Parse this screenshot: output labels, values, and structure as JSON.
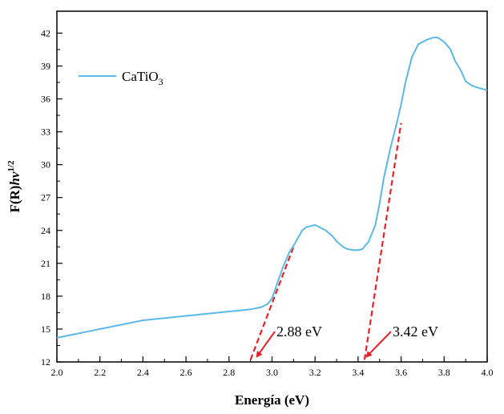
{
  "chart_data": {
    "type": "line",
    "xlabel": "Energía (eV)",
    "ylabel": "F(R)hv",
    "ylabel_italic_part": "hv",
    "ylabel_sup": "1/2",
    "xlim": [
      2.0,
      4.0
    ],
    "ylim": [
      12,
      44
    ],
    "xticks": [
      "2.0",
      "2.2",
      "2.4",
      "2.6",
      "2.8",
      "3.0",
      "3.2",
      "3.4",
      "3.6",
      "3.8",
      "4.0"
    ],
    "yticks": [
      "12",
      "15",
      "18",
      "21",
      "24",
      "27",
      "30",
      "33",
      "36",
      "39",
      "42"
    ],
    "grid": false,
    "legend_position": "top-left",
    "legend": {
      "label": "CaTiO",
      "subscript": "3"
    },
    "line_color": "#5bb8e8",
    "tangent_color": "#e8202a",
    "series": [
      {
        "name": "CaTiO3",
        "x": [
          2.0,
          2.05,
          2.1,
          2.15,
          2.2,
          2.25,
          2.3,
          2.35,
          2.4,
          2.45,
          2.5,
          2.55,
          2.6,
          2.65,
          2.7,
          2.75,
          2.8,
          2.85,
          2.9,
          2.95,
          2.98,
          3.0,
          3.03,
          3.05,
          3.08,
          3.1,
          3.12,
          3.14,
          3.16,
          3.18,
          3.2,
          3.22,
          3.25,
          3.28,
          3.3,
          3.33,
          3.35,
          3.38,
          3.4,
          3.42,
          3.45,
          3.48,
          3.5,
          3.52,
          3.55,
          3.58,
          3.6,
          3.62,
          3.65,
          3.68,
          3.7,
          3.72,
          3.75,
          3.77,
          3.8,
          3.83,
          3.85,
          3.88,
          3.9,
          3.93,
          3.96,
          4.0
        ],
        "y": [
          14.2,
          14.4,
          14.6,
          14.8,
          15.0,
          15.2,
          15.4,
          15.6,
          15.8,
          15.9,
          16.0,
          16.1,
          16.2,
          16.3,
          16.4,
          16.5,
          16.6,
          16.7,
          16.8,
          17.0,
          17.3,
          17.8,
          19.5,
          20.6,
          22.0,
          22.6,
          23.3,
          24.0,
          24.3,
          24.4,
          24.5,
          24.3,
          24.0,
          23.5,
          23.0,
          22.5,
          22.3,
          22.2,
          22.2,
          22.3,
          23.0,
          24.5,
          26.5,
          28.8,
          31.5,
          33.8,
          35.5,
          37.5,
          39.8,
          41.0,
          41.2,
          41.4,
          41.6,
          41.6,
          41.2,
          40.5,
          39.5,
          38.5,
          37.6,
          37.2,
          37.0,
          36.8
        ]
      }
    ],
    "tangents": [
      {
        "x": [
          2.9,
          3.1
        ],
        "y": [
          12.2,
          22.5
        ],
        "label": "2.88 eV",
        "arrow_tip": [
          2.93,
          12.5
        ]
      },
      {
        "x": [
          3.43,
          3.6
        ],
        "y": [
          12.2,
          33.8
        ],
        "label": "3.42 eV",
        "arrow_tip": [
          3.44,
          12.5
        ]
      }
    ]
  }
}
